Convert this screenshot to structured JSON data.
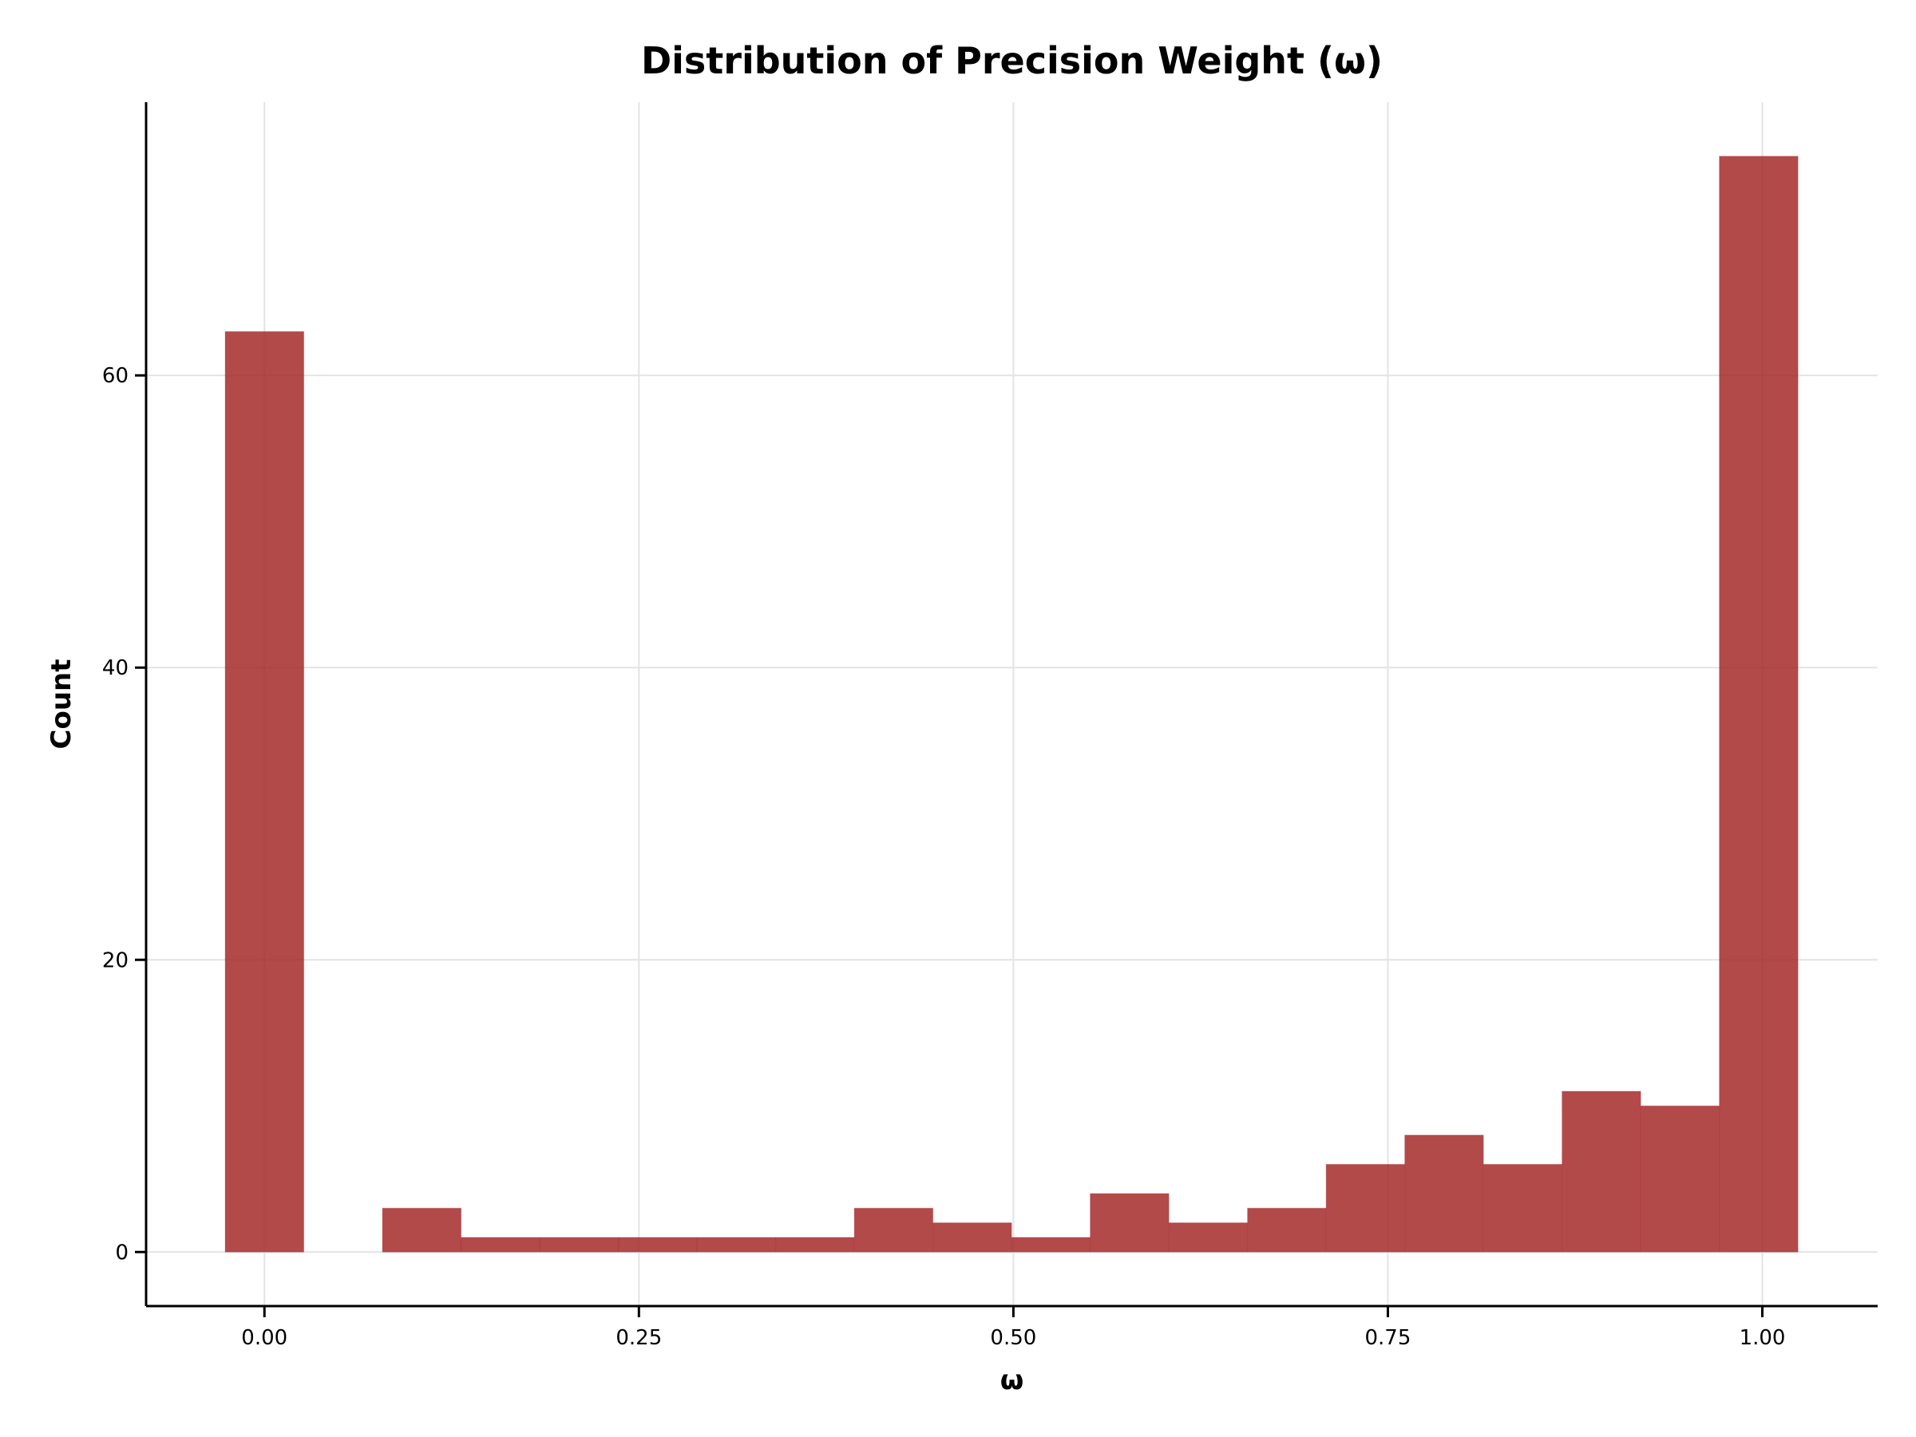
{
  "chart_data": {
    "type": "bar",
    "title": "Distribution of Precision Weight (ω)",
    "xlabel": "ω",
    "ylabel": "Count",
    "xlim": [
      -0.079,
      1.077
    ],
    "ylim": [
      -3.7,
      78.7
    ],
    "xticks": [
      "0.00",
      "0.25",
      "0.50",
      "0.75",
      "1.00"
    ],
    "xtick_values": [
      0,
      0.25,
      0.5,
      0.75,
      1.0
    ],
    "yticks": [
      "0",
      "20",
      "40",
      "60"
    ],
    "ytick_values": [
      0,
      20,
      40,
      60
    ],
    "grid": true,
    "bar_color": "#a52a2a",
    "bin_edges": [
      -0.0262,
      0.0263,
      0.0788,
      0.1313,
      0.1838,
      0.2363,
      0.2888,
      0.3413,
      0.3938,
      0.4463,
      0.4988,
      0.5513,
      0.6038,
      0.6563,
      0.7088,
      0.7613,
      0.8138,
      0.8663,
      0.9188,
      0.9713,
      1.0238
    ],
    "counts": [
      63,
      0,
      3,
      1,
      1,
      1,
      1,
      1,
      3,
      2,
      1,
      4,
      2,
      3,
      6,
      8,
      6,
      11,
      10,
      75
    ]
  }
}
